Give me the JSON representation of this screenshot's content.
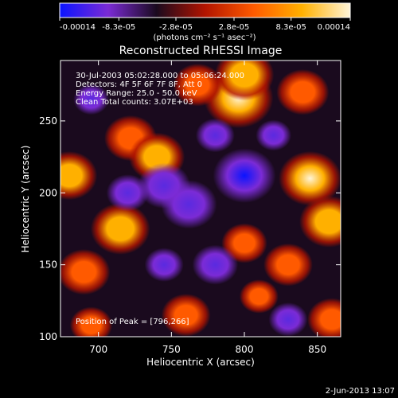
{
  "chart_data": {
    "type": "heatmap",
    "title": "Reconstructed RHESSI Image",
    "xlabel": "Heliocentric X (arcsec)",
    "ylabel": "Heliocentric Y (arcsec)",
    "xlim": [
      674,
      866
    ],
    "ylim": [
      100,
      292
    ],
    "xticks": [
      700,
      750,
      800,
      850
    ],
    "yticks": [
      100,
      150,
      200,
      250
    ],
    "colorbar": {
      "min": -0.00014,
      "max": 0.00014,
      "tick_labels": [
        "-0.00014",
        "-8.3e-05",
        "-2.8e-05",
        "2.8e-05",
        "8.3e-05",
        "0.00014"
      ],
      "units_label": "(photons cm⁻² s⁻¹ asec⁻²)",
      "stops": [
        "#0a14ff",
        "#7b2bd6",
        "#1a0a1e",
        "#b21400",
        "#ff5a00",
        "#ffb000",
        "#fff5d8"
      ]
    },
    "annotations": [
      "30-Jul-2003 05:02:28.000 to 05:06:24.000",
      "Detectors: 4F 5F 6F 7F 8F, Att 0",
      "Energy Range: 25.0 - 50.0 keV",
      "Clean     Total counts: 3.07E+03"
    ],
    "peak_label": "Position of Peak = [796,266]",
    "peak": [
      796,
      266
    ],
    "sources": [
      {
        "x": 796,
        "y": 266,
        "value": 0.00014
      },
      {
        "x": 800,
        "y": 282,
        "value": 0.00011
      },
      {
        "x": 722,
        "y": 238,
        "value": 9e-05
      },
      {
        "x": 740,
        "y": 225,
        "value": 0.0001
      },
      {
        "x": 768,
        "y": 275,
        "value": 8e-05
      },
      {
        "x": 680,
        "y": 212,
        "value": 0.0001
      },
      {
        "x": 715,
        "y": 175,
        "value": 0.00011
      },
      {
        "x": 690,
        "y": 145,
        "value": 9e-05
      },
      {
        "x": 845,
        "y": 210,
        "value": 0.00012
      },
      {
        "x": 858,
        "y": 180,
        "value": 0.00011
      },
      {
        "x": 840,
        "y": 270,
        "value": 9e-05
      },
      {
        "x": 830,
        "y": 150,
        "value": 8e-05
      },
      {
        "x": 800,
        "y": 165,
        "value": 7e-05
      },
      {
        "x": 760,
        "y": 115,
        "value": 8e-05
      },
      {
        "x": 860,
        "y": 112,
        "value": 8e-05
      },
      {
        "x": 695,
        "y": 108,
        "value": 6e-05
      },
      {
        "x": 810,
        "y": 128,
        "value": 5e-05
      },
      {
        "x": 800,
        "y": 212,
        "value": -0.00012
      },
      {
        "x": 745,
        "y": 205,
        "value": -9e-05
      },
      {
        "x": 762,
        "y": 192,
        "value": -0.0001
      },
      {
        "x": 720,
        "y": 200,
        "value": -6e-05
      },
      {
        "x": 780,
        "y": 150,
        "value": -7e-05
      },
      {
        "x": 745,
        "y": 150,
        "value": -5e-05
      },
      {
        "x": 830,
        "y": 112,
        "value": -5e-05
      },
      {
        "x": 695,
        "y": 265,
        "value": -4e-05
      },
      {
        "x": 820,
        "y": 240,
        "value": -4e-05
      },
      {
        "x": 780,
        "y": 240,
        "value": -5e-05
      }
    ]
  },
  "timestamp": "2-Jun-2013 13:07"
}
